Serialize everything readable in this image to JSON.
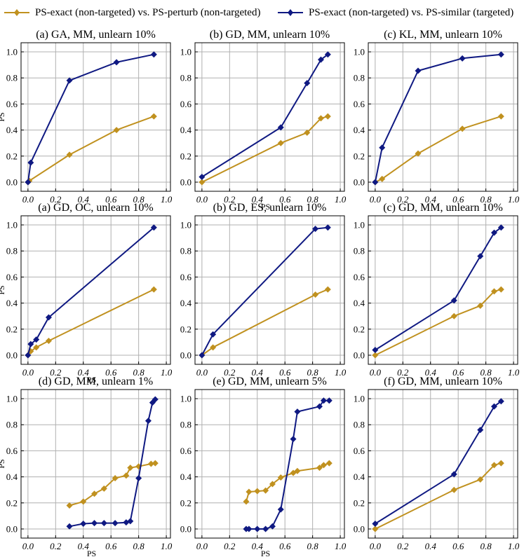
{
  "colors": {
    "perturb": "#C0911F",
    "similar": "#0F1982",
    "grid": "#b0b0b0"
  },
  "legend": {
    "perturb_label": "PS-exact (non-targeted) vs. PS-perturb (non-targeted)",
    "similar_label": "PS-exact (non-targeted) vs. PS-similar (targeted)"
  },
  "chart_data": [
    {
      "type": "line",
      "title": "(a) GA, MM, unlearn 10%",
      "xlabel": "",
      "ylabel": "PS",
      "xlim": [
        -0.05,
        1.03
      ],
      "ylim": [
        -0.07,
        1.07
      ],
      "xticks": [
        "0.0",
        "0.2",
        "0.4",
        "0.6",
        "0.8",
        "1.0"
      ],
      "yticks": [
        "0.0",
        "0.2",
        "0.4",
        "0.6",
        "0.8",
        "1.0"
      ],
      "series": [
        {
          "name": "PS-exact (non-targeted) vs. PS-perturb (non-targeted)",
          "x": [
            0,
            0.01,
            0.3,
            0.64,
            0.91
          ],
          "y": [
            0,
            0.01,
            0.21,
            0.4,
            0.505
          ]
        },
        {
          "name": "PS-exact (non-targeted) vs. PS-similar (targeted)",
          "x": [
            0,
            0.02,
            0.3,
            0.64,
            0.91
          ],
          "y": [
            0,
            0.15,
            0.78,
            0.92,
            0.98
          ]
        }
      ]
    },
    {
      "type": "line",
      "title": "(b) GD, MM, unlearn 10%",
      "xlabel": "PS",
      "ylabel": "",
      "xlim": [
        -0.05,
        1.03
      ],
      "ylim": [
        -0.07,
        1.07
      ],
      "xticks": [
        "0.0",
        "0.2",
        "0.4",
        "0.6",
        "0.8",
        "1.0"
      ],
      "yticks": [
        "0.0",
        "0.2",
        "0.4",
        "0.6",
        "0.8",
        "1.0"
      ],
      "series": [
        {
          "name": "PS-exact (non-targeted) vs. PS-perturb (non-targeted)",
          "x": [
            0,
            0.57,
            0.76,
            0.86,
            0.91
          ],
          "y": [
            0,
            0.3,
            0.38,
            0.49,
            0.505
          ]
        },
        {
          "name": "PS-exact (non-targeted) vs. PS-similar (targeted)",
          "x": [
            0,
            0.57,
            0.76,
            0.86,
            0.91
          ],
          "y": [
            0.04,
            0.42,
            0.76,
            0.94,
            0.98
          ]
        }
      ]
    },
    {
      "type": "line",
      "title": "(c) KL, MM, unlearn 10%",
      "xlabel": "",
      "ylabel": "",
      "xlim": [
        -0.05,
        1.03
      ],
      "ylim": [
        -0.07,
        1.07
      ],
      "xticks": [
        "0.0",
        "0.2",
        "0.4",
        "0.6",
        "0.8",
        "1.0"
      ],
      "yticks": [
        "0.0",
        "0.2",
        "0.4",
        "0.6",
        "0.8",
        "1.0"
      ],
      "series": [
        {
          "name": "PS-exact (non-targeted) vs. PS-perturb (non-targeted)",
          "x": [
            0,
            0.05,
            0.31,
            0.63,
            0.91
          ],
          "y": [
            0,
            0.025,
            0.22,
            0.41,
            0.505
          ]
        },
        {
          "name": "PS-exact (non-targeted) vs. PS-similar (targeted)",
          "x": [
            0,
            0.05,
            0.31,
            0.63,
            0.91
          ],
          "y": [
            0,
            0.265,
            0.855,
            0.95,
            0.98
          ]
        }
      ]
    },
    {
      "type": "line",
      "title": "(a) GD, OC, unlearn 10%",
      "xlabel": "PS",
      "ylabel": "PS",
      "xlim": [
        -0.05,
        1.03
      ],
      "ylim": [
        -0.07,
        1.07
      ],
      "xticks": [
        "0.0",
        "0.2",
        "0.4",
        "0.6",
        "0.8",
        "1.0"
      ],
      "yticks": [
        "0.0",
        "0.2",
        "0.4",
        "0.6",
        "0.8",
        "1.0"
      ],
      "series": [
        {
          "name": "PS-exact (non-targeted) vs. PS-perturb (non-targeted)",
          "x": [
            0,
            0.02,
            0.06,
            0.15,
            0.91
          ],
          "y": [
            0,
            0.03,
            0.06,
            0.11,
            0.505
          ]
        },
        {
          "name": "PS-exact (non-targeted) vs. PS-similar (targeted)",
          "x": [
            0,
            0.02,
            0.06,
            0.15,
            0.91
          ],
          "y": [
            0,
            0.085,
            0.12,
            0.29,
            0.98
          ]
        }
      ]
    },
    {
      "type": "line",
      "title": "(b) GD, ES, unlearn 10%",
      "xlabel": "",
      "ylabel": "",
      "xlim": [
        -0.05,
        1.03
      ],
      "ylim": [
        -0.07,
        1.07
      ],
      "xticks": [
        "0.0",
        "0.2",
        "0.4",
        "0.6",
        "0.8",
        "1.0"
      ],
      "yticks": [
        "0.0",
        "0.2",
        "0.4",
        "0.6",
        "0.8",
        "1.0"
      ],
      "series": [
        {
          "name": "PS-exact (non-targeted) vs. PS-perturb (non-targeted)",
          "x": [
            0,
            0.08,
            0.82,
            0.91
          ],
          "y": [
            0,
            0.06,
            0.465,
            0.505
          ]
        },
        {
          "name": "PS-exact (non-targeted) vs. PS-similar (targeted)",
          "x": [
            0,
            0.08,
            0.82,
            0.91
          ],
          "y": [
            0,
            0.16,
            0.97,
            0.98
          ]
        }
      ]
    },
    {
      "type": "line",
      "title": "(c) GD, MM, unlearn 10%",
      "xlabel": "",
      "ylabel": "",
      "xlim": [
        -0.05,
        1.03
      ],
      "ylim": [
        -0.07,
        1.07
      ],
      "xticks": [
        "0.0",
        "0.2",
        "0.4",
        "0.6",
        "0.8",
        "1.0"
      ],
      "yticks": [
        "0.0",
        "0.2",
        "0.4",
        "0.6",
        "0.8",
        "1.0"
      ],
      "series": [
        {
          "name": "PS-exact (non-targeted) vs. PS-perturb (non-targeted)",
          "x": [
            0,
            0.57,
            0.76,
            0.86,
            0.91
          ],
          "y": [
            0,
            0.3,
            0.38,
            0.49,
            0.505
          ]
        },
        {
          "name": "PS-exact (non-targeted) vs. PS-similar (targeted)",
          "x": [
            0,
            0.57,
            0.76,
            0.86,
            0.91
          ],
          "y": [
            0.04,
            0.42,
            0.76,
            0.94,
            0.98
          ]
        }
      ]
    },
    {
      "type": "line",
      "title": "(d) GD, MM, unlearn 1%",
      "xlabel": "PS",
      "ylabel": "PS",
      "xlim": [
        -0.05,
        1.03
      ],
      "ylim": [
        -0.07,
        1.07
      ],
      "xticks": [
        "0.0",
        "0.2",
        "0.4",
        "0.6",
        "0.8",
        "1.0"
      ],
      "yticks": [
        "0.0",
        "0.2",
        "0.4",
        "0.6",
        "0.8",
        "1.0"
      ],
      "series": [
        {
          "name": "PS-exact (non-targeted) vs. PS-perturb (non-targeted)",
          "x": [
            0.3,
            0.4,
            0.48,
            0.55,
            0.63,
            0.71,
            0.74,
            0.8,
            0.89,
            0.92
          ],
          "y": [
            0.18,
            0.21,
            0.27,
            0.31,
            0.39,
            0.41,
            0.47,
            0.48,
            0.5,
            0.505
          ]
        },
        {
          "name": "PS-exact (non-targeted) vs. PS-similar (targeted)",
          "x": [
            0.3,
            0.4,
            0.48,
            0.55,
            0.63,
            0.71,
            0.74,
            0.8,
            0.87,
            0.9,
            0.92
          ],
          "y": [
            0.02,
            0.04,
            0.045,
            0.045,
            0.045,
            0.05,
            0.06,
            0.39,
            0.83,
            0.97,
            0.995
          ]
        }
      ]
    },
    {
      "type": "line",
      "title": "(e) GD, MM, unlearn 5%",
      "xlabel": "PS",
      "ylabel": "",
      "xlim": [
        -0.05,
        1.03
      ],
      "ylim": [
        -0.07,
        1.07
      ],
      "xticks": [
        "0.0",
        "0.2",
        "0.4",
        "0.6",
        "0.8",
        "1.0"
      ],
      "yticks": [
        "0.0",
        "0.2",
        "0.4",
        "0.6",
        "0.8",
        "1.0"
      ],
      "series": [
        {
          "name": "PS-exact (non-targeted) vs. PS-perturb (non-targeted)",
          "x": [
            0.32,
            0.34,
            0.4,
            0.46,
            0.51,
            0.57,
            0.66,
            0.69,
            0.85,
            0.88,
            0.92
          ],
          "y": [
            0.21,
            0.285,
            0.29,
            0.295,
            0.345,
            0.395,
            0.43,
            0.445,
            0.47,
            0.49,
            0.505
          ]
        },
        {
          "name": "PS-exact (non-targeted) vs. PS-similar (targeted)",
          "x": [
            0.32,
            0.34,
            0.4,
            0.46,
            0.51,
            0.57,
            0.66,
            0.69,
            0.85,
            0.88,
            0.92
          ],
          "y": [
            0,
            0,
            0,
            0,
            0.02,
            0.15,
            0.69,
            0.9,
            0.94,
            0.985,
            0.985
          ]
        }
      ]
    },
    {
      "type": "line",
      "title": "(f) GD, MM, unlearn 10%",
      "xlabel": "",
      "ylabel": "",
      "xlim": [
        -0.05,
        1.03
      ],
      "ylim": [
        -0.07,
        1.07
      ],
      "xticks": [
        "0.0",
        "0.2",
        "0.4",
        "0.6",
        "0.8",
        "1.0"
      ],
      "yticks": [
        "0.0",
        "0.2",
        "0.4",
        "0.6",
        "0.8",
        "1.0"
      ],
      "series": [
        {
          "name": "PS-exact (non-targeted) vs. PS-perturb (non-targeted)",
          "x": [
            0,
            0.57,
            0.76,
            0.86,
            0.91
          ],
          "y": [
            0,
            0.3,
            0.38,
            0.49,
            0.505
          ]
        },
        {
          "name": "PS-exact (non-targeted) vs. PS-similar (targeted)",
          "x": [
            0,
            0.57,
            0.76,
            0.86,
            0.91
          ],
          "y": [
            0.04,
            0.42,
            0.76,
            0.94,
            0.98
          ]
        }
      ]
    }
  ]
}
